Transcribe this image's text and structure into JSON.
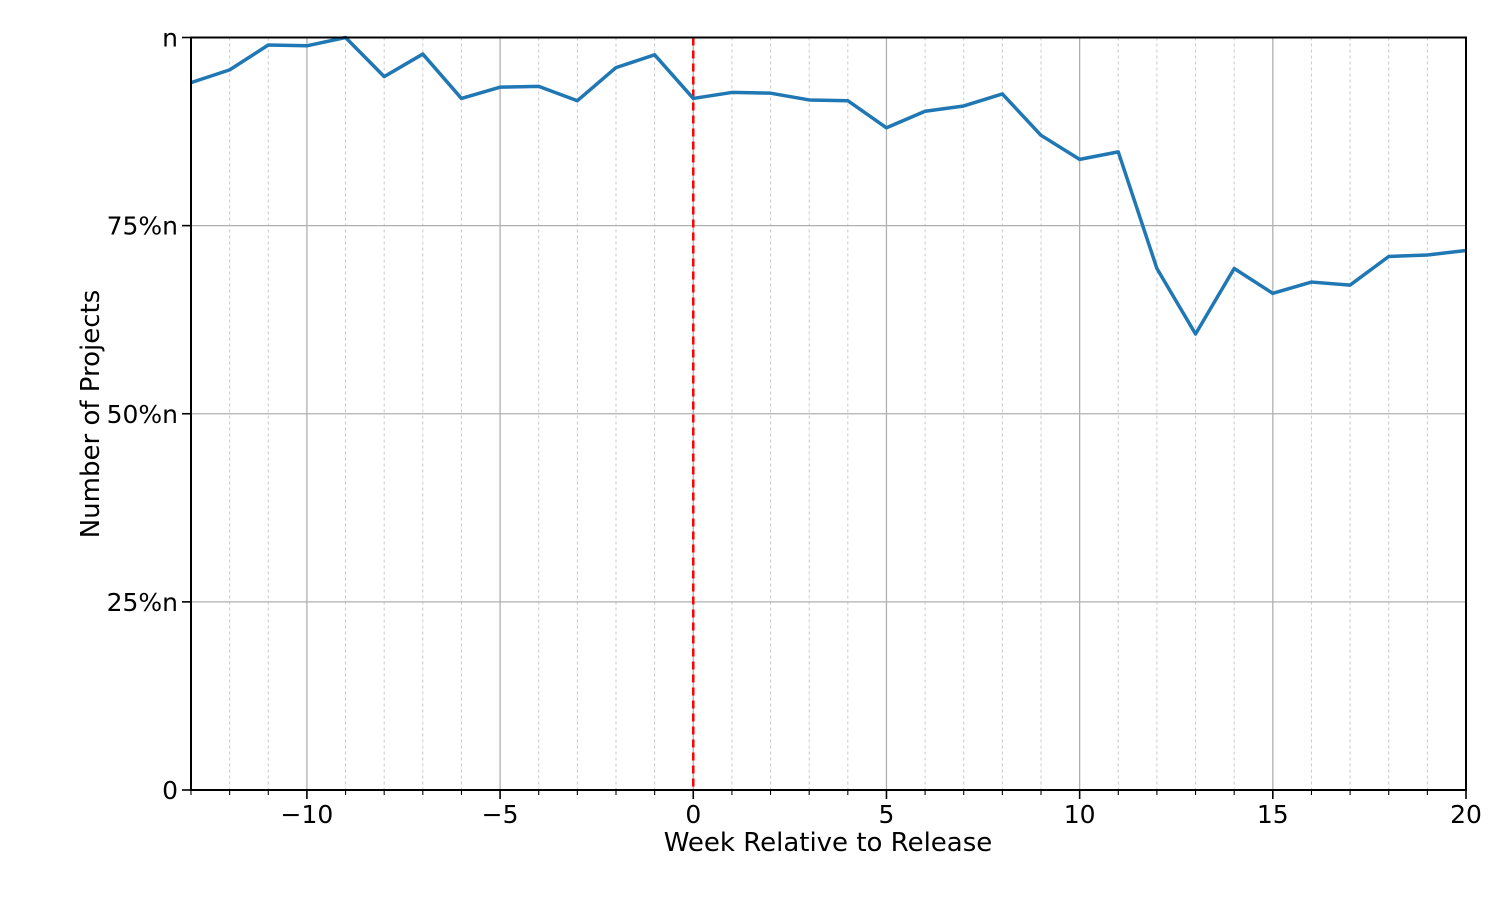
{
  "chart_data": {
    "type": "line",
    "title": "",
    "xlabel": "Week Relative to Release",
    "ylabel": "Number of Projects",
    "x": [
      -13,
      -12,
      -11,
      -10,
      -9,
      -8,
      -7,
      -6,
      -5,
      -4,
      -3,
      -2,
      -1,
      0,
      1,
      2,
      3,
      4,
      5,
      6,
      7,
      8,
      9,
      10,
      11,
      12,
      13,
      14,
      15,
      16,
      17,
      18,
      19,
      20
    ],
    "series": [
      {
        "name": "projects",
        "values": [
          94.0,
          95.7,
          99.0,
          98.9,
          100.0,
          94.8,
          97.8,
          91.9,
          93.4,
          93.5,
          91.6,
          96.0,
          97.7,
          91.9,
          92.7,
          92.6,
          91.7,
          91.6,
          88.0,
          90.2,
          90.9,
          92.5,
          87.0,
          83.8,
          84.8,
          69.3,
          60.6,
          69.3,
          66.0,
          67.5,
          67.1,
          70.9,
          71.1,
          71.7
        ],
        "color": "#1f77b4"
      }
    ],
    "y_value_unit": "% of n",
    "xlim": [
      -13,
      20
    ],
    "ylim": [
      0,
      100
    ],
    "xticks_major": [
      -10,
      -5,
      0,
      5,
      10,
      15,
      20
    ],
    "xtick_labels": [
      "−10",
      "−5",
      "0",
      "5",
      "10",
      "15",
      "20"
    ],
    "yticks": [
      0,
      25,
      50,
      75,
      100
    ],
    "ytick_labels": [
      "0",
      "25%n",
      "50%n",
      "75%n",
      "n"
    ],
    "vline": {
      "x": 0,
      "color": "#ff0000",
      "style": "dashed"
    },
    "grid": {
      "major_color": "#b0b0b0",
      "minor_color": "#c9c9c9",
      "minor_style": "dashed",
      "x_minor_every": 1
    },
    "legend_position": "none",
    "spine_color": "#000000",
    "background_color": "#ffffff"
  }
}
